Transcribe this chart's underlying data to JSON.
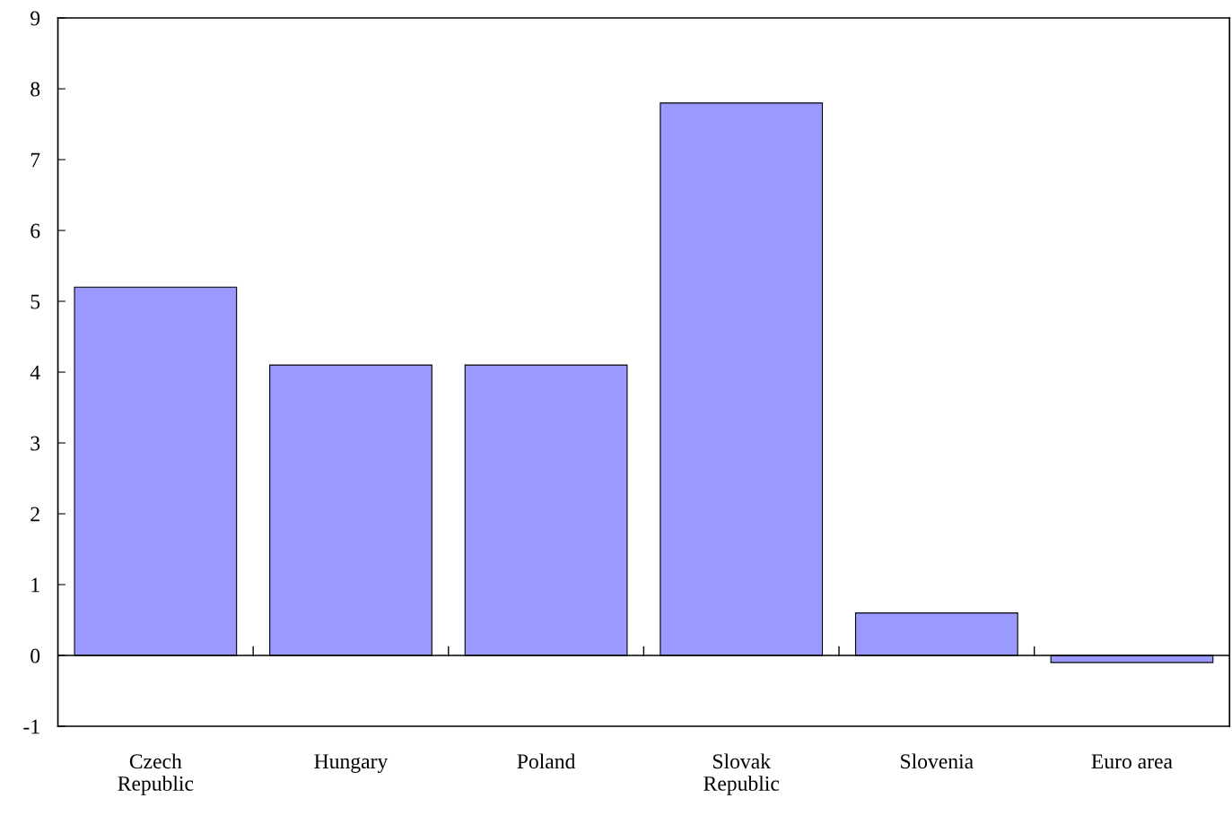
{
  "chart_data": {
    "type": "bar",
    "categories": [
      "Czech\nRepublic",
      "Hungary",
      "Poland",
      "Slovak\nRepublic",
      "Slovenia",
      "Euro area"
    ],
    "values": [
      5.2,
      4.1,
      4.1,
      7.8,
      0.6,
      -0.1
    ],
    "color": "#9999ff",
    "ylim": [
      -1,
      9
    ],
    "yticks": [
      {
        "value": -1,
        "label": "-1"
      },
      0,
      1,
      2,
      3,
      4,
      5,
      6,
      7,
      8,
      9
    ],
    "ref_lines": [
      {
        "axis": "y",
        "value": 0,
        "color": "#000000"
      }
    ],
    "grid": false,
    "legend": false
  }
}
